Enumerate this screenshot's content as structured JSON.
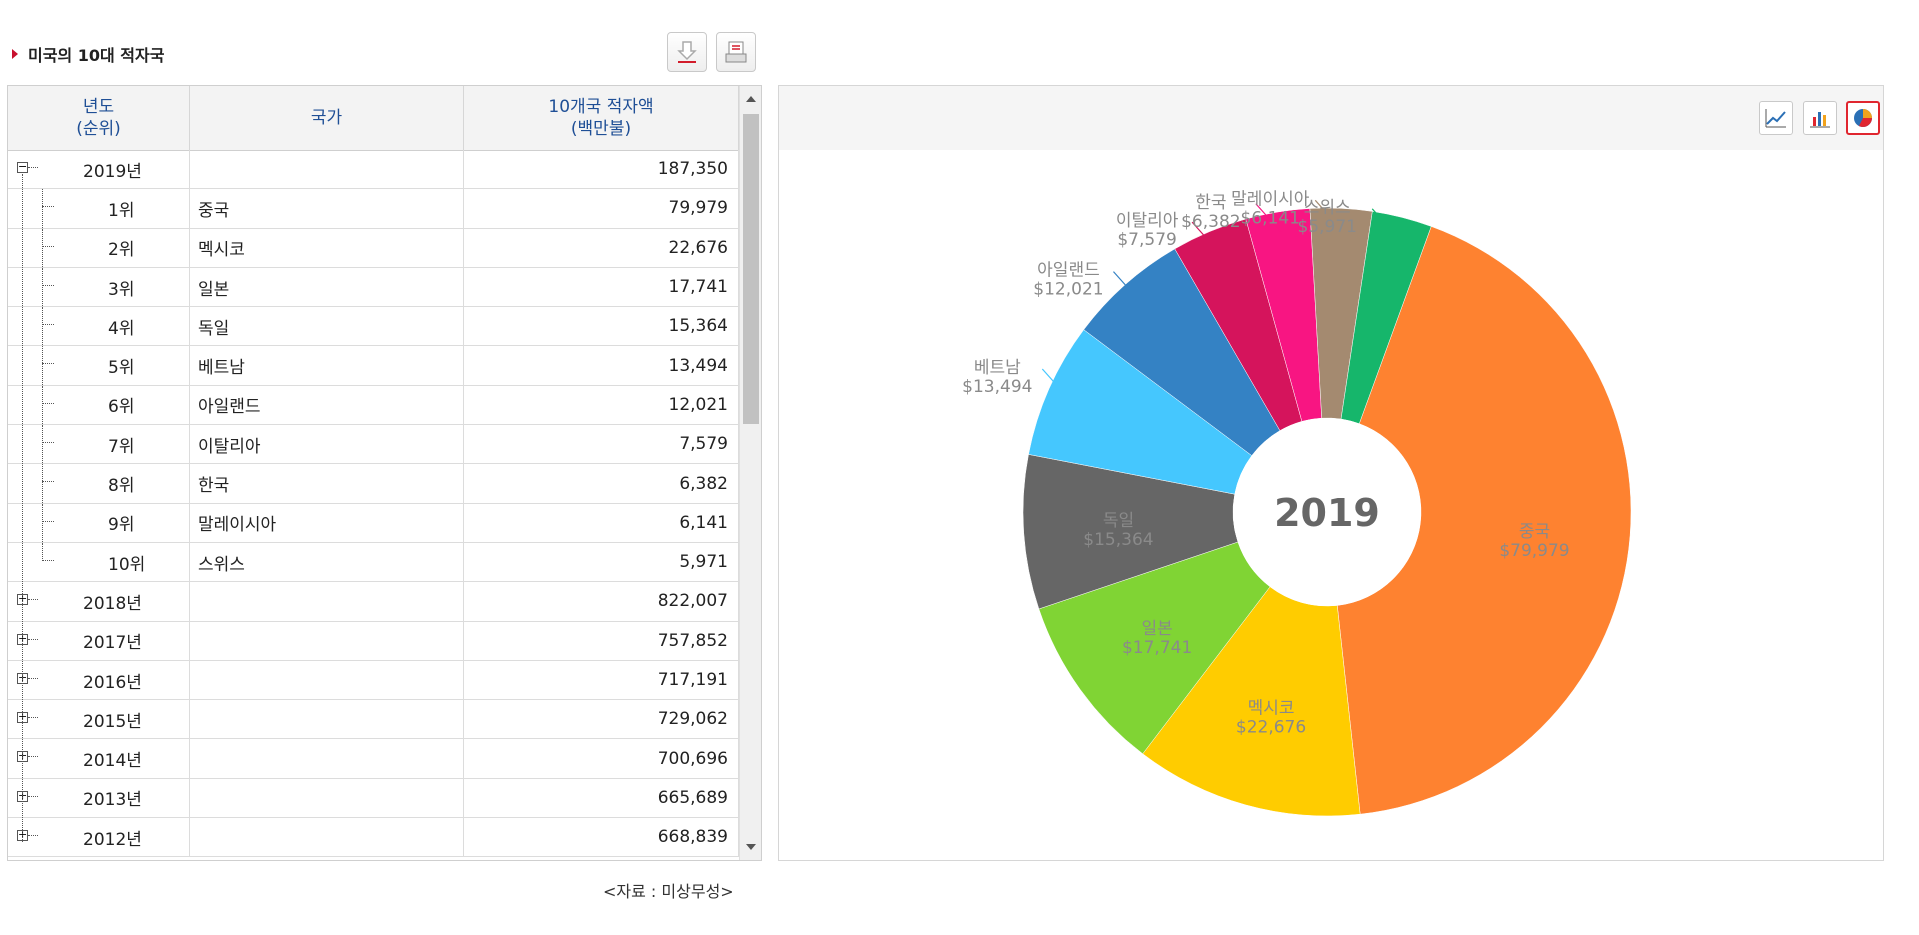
{
  "title": "미국의 10대 적자국",
  "headers": {
    "year_line1": "년도",
    "year_line2": "(순위)",
    "country": "국가",
    "amount_line1": "10개국 적자액",
    "amount_line2": "(백만불)"
  },
  "rows": [
    {
      "col1": "2019년",
      "country": "",
      "value": "187,350",
      "type": "year",
      "expanded": true
    },
    {
      "col1": "1위",
      "country": "중국",
      "value": "79,979",
      "type": "rank"
    },
    {
      "col1": "2위",
      "country": "멕시코",
      "value": "22,676",
      "type": "rank"
    },
    {
      "col1": "3위",
      "country": "일본",
      "value": "17,741",
      "type": "rank"
    },
    {
      "col1": "4위",
      "country": "독일",
      "value": "15,364",
      "type": "rank"
    },
    {
      "col1": "5위",
      "country": "베트남",
      "value": "13,494",
      "type": "rank"
    },
    {
      "col1": "6위",
      "country": "아일랜드",
      "value": "12,021",
      "type": "rank"
    },
    {
      "col1": "7위",
      "country": "이탈리아",
      "value": "7,579",
      "type": "rank"
    },
    {
      "col1": "8위",
      "country": "한국",
      "value": "6,382",
      "type": "rank"
    },
    {
      "col1": "9위",
      "country": "말레이시아",
      "value": "6,141",
      "type": "rank"
    },
    {
      "col1": "10위",
      "country": "스위스",
      "value": "5,971",
      "type": "rank-last"
    },
    {
      "col1": "2018년",
      "country": "",
      "value": "822,007",
      "type": "year",
      "expanded": false
    },
    {
      "col1": "2017년",
      "country": "",
      "value": "757,852",
      "type": "year",
      "expanded": false
    },
    {
      "col1": "2016년",
      "country": "",
      "value": "717,191",
      "type": "year",
      "expanded": false
    },
    {
      "col1": "2015년",
      "country": "",
      "value": "729,062",
      "type": "year",
      "expanded": false
    },
    {
      "col1": "2014년",
      "country": "",
      "value": "700,696",
      "type": "year",
      "expanded": false
    },
    {
      "col1": "2013년",
      "country": "",
      "value": "665,689",
      "type": "year",
      "expanded": false
    },
    {
      "col1": "2012년",
      "country": "",
      "value": "668,839",
      "type": "year",
      "expanded": false
    }
  ],
  "source": "<자료 : 미상무성>",
  "toolbar_icons": [
    "download-icon",
    "print-icon"
  ],
  "chart_tools": [
    "line-chart-icon",
    "bar-chart-icon",
    "pie-chart-icon"
  ],
  "chart_data": {
    "type": "pie",
    "center_label": "2019",
    "slices": [
      {
        "name": "중국",
        "value": 79979,
        "label": "$79,979",
        "color": "#fe8230"
      },
      {
        "name": "멕시코",
        "value": 22676,
        "label": "$22,676",
        "color": "#ffcc00"
      },
      {
        "name": "일본",
        "value": 17741,
        "label": "$17,741",
        "color": "#80d434"
      },
      {
        "name": "독일",
        "value": 15364,
        "label": "$15,364",
        "color": "#666666"
      },
      {
        "name": "베트남",
        "value": 13494,
        "label": "$13,494",
        "color": "#45c7fe"
      },
      {
        "name": "아일랜드",
        "value": 12021,
        "label": "$12,021",
        "color": "#3482c4"
      },
      {
        "name": "이탈리아",
        "value": 7579,
        "label": "$7,579",
        "color": "#d5145c"
      },
      {
        "name": "한국",
        "value": 6382,
        "label": "$6,382",
        "color": "#f81582"
      },
      {
        "name": "말레이시아",
        "value": 6141,
        "label": "$6,141",
        "color": "#a48a70"
      },
      {
        "name": "스위스",
        "value": 5971,
        "label": "$5,971",
        "color": "#16b66b"
      }
    ]
  }
}
